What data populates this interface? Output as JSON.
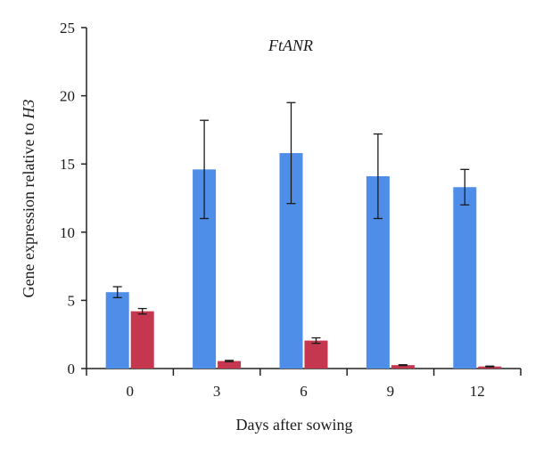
{
  "chart_data": {
    "type": "bar",
    "title": "FtANR",
    "xlabel": "Days after sowing",
    "ylabel_main": "Gene expression relative to ",
    "ylabel_italic": "H3",
    "categories": [
      "0",
      "3",
      "6",
      "9",
      "12"
    ],
    "ylim": [
      0,
      25
    ],
    "yticks": [
      0,
      5,
      10,
      15,
      20,
      25
    ],
    "series": [
      {
        "color": "#4f8ee8",
        "values": [
          5.6,
          14.6,
          15.8,
          14.1,
          13.3
        ],
        "errors": [
          0.4,
          3.6,
          3.7,
          3.1,
          1.3
        ]
      },
      {
        "color": "#c5374e",
        "values": [
          4.2,
          0.55,
          2.05,
          0.25,
          0.15
        ],
        "errors": [
          0.2,
          0.05,
          0.2,
          0.03,
          0.03
        ]
      }
    ],
    "legend": false,
    "grid": false
  }
}
